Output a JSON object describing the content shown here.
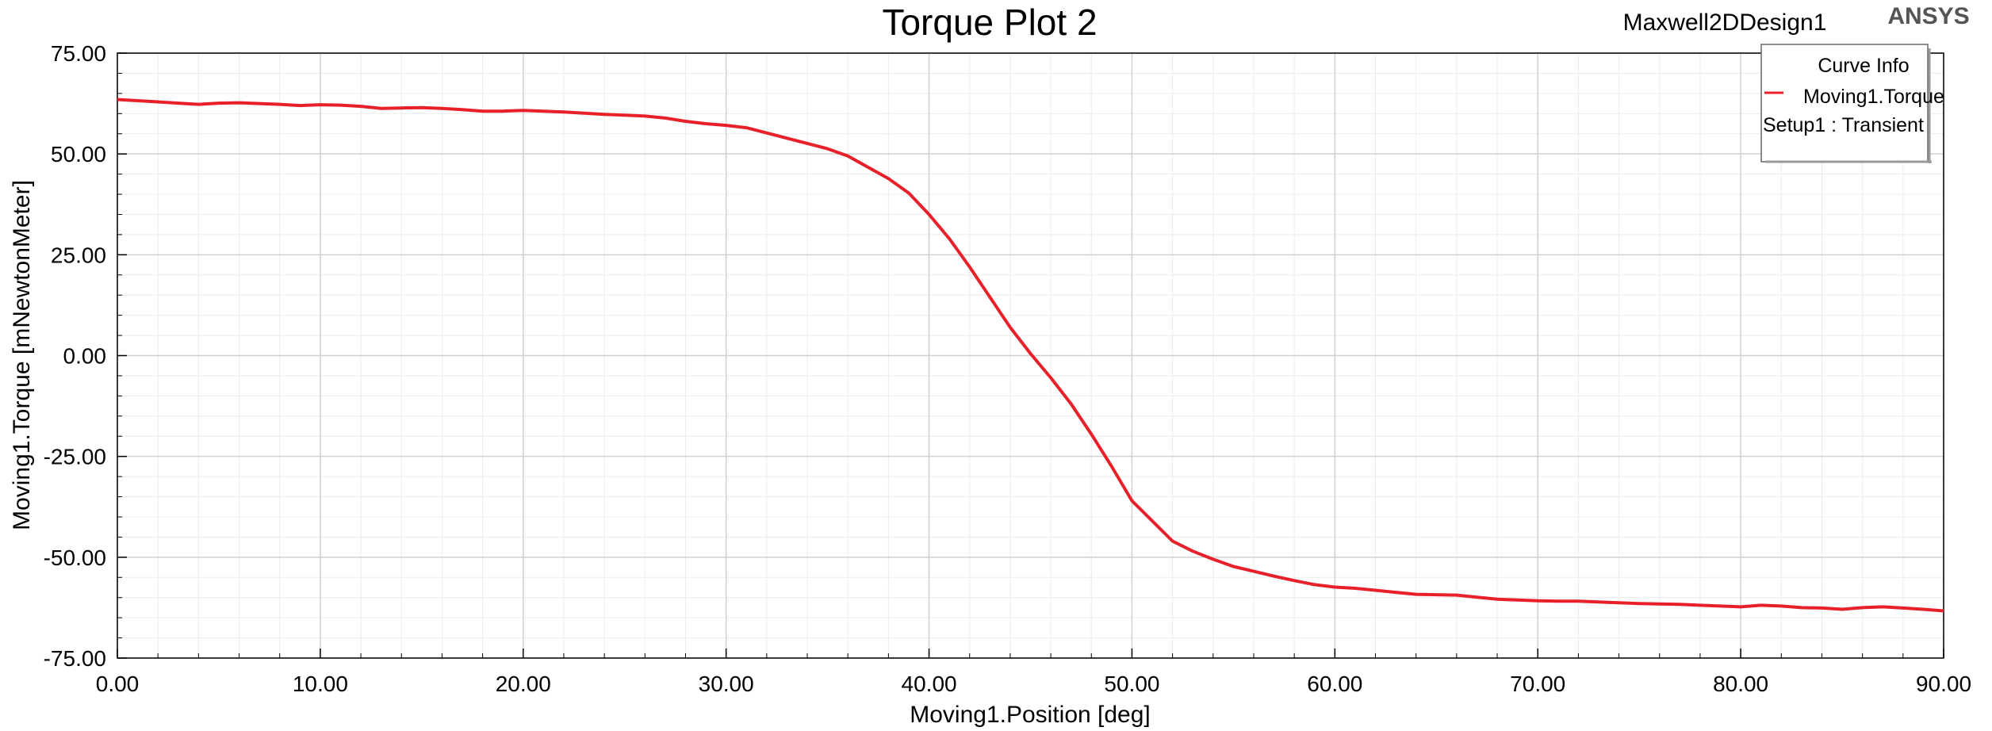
{
  "header": {
    "design_name": "Maxwell2DDesign1",
    "brand": "ANSYS"
  },
  "legend": {
    "title": "Curve Info",
    "series_label": "Moving1.Torque",
    "setup_label": "Setup1 : Transient",
    "placement": "top-right"
  },
  "colors": {
    "series": "#e8202a",
    "major_grid": "#d0d0d0",
    "minor_grid": "#ececec"
  },
  "chart_data": {
    "type": "line",
    "title": "Torque Plot 2",
    "xlabel": "Moving1.Position [deg]",
    "ylabel": "Moving1.Torque [mNewtonMeter]",
    "xlim": [
      0,
      90
    ],
    "ylim": [
      -75,
      75
    ],
    "x_ticks": [
      "0.00",
      "10.00",
      "20.00",
      "30.00",
      "40.00",
      "50.00",
      "60.00",
      "70.00",
      "80.00",
      "90.00"
    ],
    "y_ticks": [
      "75.00",
      "50.00",
      "25.00",
      "0.00",
      "-25.00",
      "-50.00",
      "-75.00"
    ],
    "grid": true,
    "series": [
      {
        "name": "Moving1.Torque",
        "x": [
          0,
          1,
          2,
          3,
          4,
          5,
          6,
          7,
          8,
          9,
          10,
          11,
          12,
          13,
          14,
          15,
          16,
          17,
          18,
          19,
          20,
          21,
          22,
          23,
          24,
          25,
          26,
          27,
          28,
          29,
          30,
          31,
          32,
          33,
          34,
          35,
          36,
          37,
          38,
          39,
          40,
          41,
          42,
          43,
          44,
          45,
          46,
          47,
          48,
          49,
          50,
          51,
          52,
          53,
          54,
          55,
          56,
          57,
          58,
          59,
          60,
          61,
          62,
          63,
          64,
          65,
          66,
          67,
          68,
          69,
          70,
          71,
          72,
          73,
          74,
          75,
          76,
          77,
          78,
          79,
          80,
          81,
          82,
          83,
          84,
          85,
          86,
          87,
          88,
          89,
          90
        ],
        "y": [
          63.5,
          63.2,
          62.9,
          62.6,
          62.3,
          62.6,
          62.7,
          62.5,
          62.3,
          62.0,
          62.2,
          62.1,
          61.8,
          61.3,
          61.4,
          61.5,
          61.3,
          61.0,
          60.6,
          60.6,
          60.8,
          60.6,
          60.4,
          60.1,
          59.8,
          59.6,
          59.4,
          58.9,
          58.1,
          57.5,
          57.1,
          56.5,
          55.2,
          53.9,
          52.6,
          51.3,
          49.5,
          46.7,
          43.9,
          40.3,
          35.0,
          29.0,
          22.0,
          14.5,
          7.0,
          0.5,
          -5.5,
          -12.0,
          -19.5,
          -27.5,
          -36.0,
          -41.0,
          -46.0,
          -48.5,
          -50.5,
          -52.3,
          -53.5,
          -54.7,
          -55.8,
          -56.8,
          -57.4,
          -57.7,
          -58.2,
          -58.7,
          -59.2,
          -59.3,
          -59.4,
          -59.9,
          -60.4,
          -60.6,
          -60.8,
          -60.9,
          -60.9,
          -61.1,
          -61.3,
          -61.5,
          -61.6,
          -61.7,
          -61.9,
          -62.1,
          -62.3,
          -61.9,
          -62.1,
          -62.5,
          -62.6,
          -62.9,
          -62.5,
          -62.3,
          -62.6,
          -62.9,
          -63.3
        ]
      }
    ]
  }
}
